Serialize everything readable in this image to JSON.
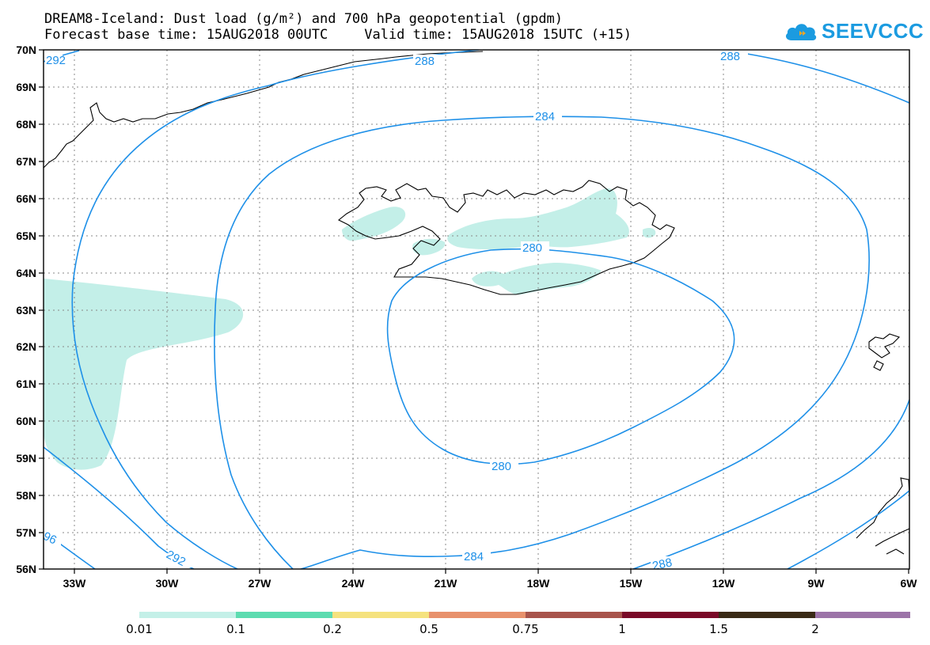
{
  "title": {
    "line1": "DREAM8-Iceland: Dust load (g/m²) and 700 hPa geopotential (gpdm)",
    "base_time": "Forecast base time: 15AUG2018 00UTC",
    "valid_time": "Valid time: 15AUG2018 15UTC (+15)"
  },
  "logo": {
    "text": "SEEVCCC",
    "icon": "cloud-icon",
    "color": "#1b9be0"
  },
  "axes": {
    "lat_labels": [
      "70N",
      "69N",
      "68N",
      "67N",
      "66N",
      "65N",
      "64N",
      "63N",
      "62N",
      "61N",
      "60N",
      "59N",
      "58N",
      "57N",
      "56N"
    ],
    "lon_labels": [
      "33W",
      "30W",
      "27W",
      "24W",
      "21W",
      "18W",
      "15W",
      "12W",
      "9W",
      "6W"
    ]
  },
  "contours": {
    "color": "#1e90e8",
    "labels": [
      "292",
      "288",
      "288",
      "284",
      "280",
      "280",
      "284",
      "288",
      "292",
      "96"
    ]
  },
  "dust_color": "#c3efe8",
  "colorbar": {
    "colors": [
      "#c4f0e8",
      "#5ddcb0",
      "#f5e27e",
      "#e8916c",
      "#a8544c",
      "#7a0a28",
      "#3a2a16",
      "#9c74a8"
    ],
    "labels": [
      "0.01",
      "0.1",
      "0.2",
      "0.5",
      "0.75",
      "1",
      "1.5",
      "2"
    ]
  }
}
